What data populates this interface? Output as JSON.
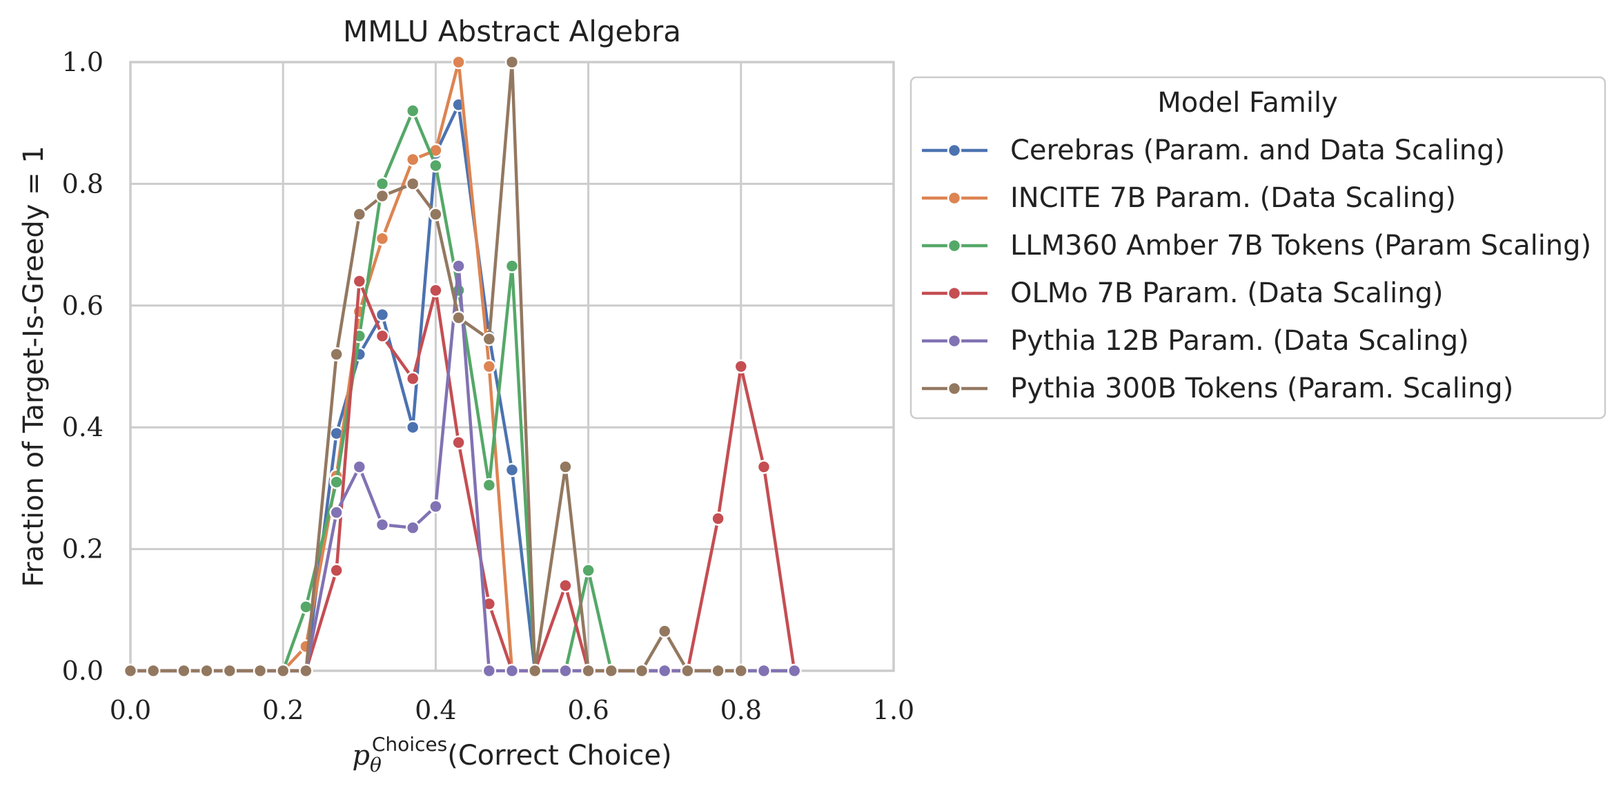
{
  "chart_data": {
    "type": "line",
    "title": "MMLU Abstract Algebra",
    "xlabel_prefix": "p",
    "xlabel_sub": "θ",
    "xlabel_sup": "Choices",
    "xlabel_main": "(Correct Choice)",
    "ylabel": "Fraction of Target-Is-Greedy = 1",
    "xlim": [
      0,
      1
    ],
    "ylim": [
      0,
      1
    ],
    "xticks": [
      "0.0",
      "0.2",
      "0.4",
      "0.6",
      "0.8",
      "1.0"
    ],
    "yticks": [
      "0.0",
      "0.2",
      "0.4",
      "0.6",
      "0.8",
      "1.0"
    ],
    "grid": true,
    "legend_title": "Model Family",
    "legend_position": "outside-right",
    "series": [
      {
        "name": "Cerebras (Param. and Data Scaling)",
        "color": "#4c72b0",
        "x": [
          0.0,
          0.03,
          0.07,
          0.1,
          0.13,
          0.17,
          0.2,
          0.23,
          0.27,
          0.3,
          0.33,
          0.37,
          0.4,
          0.43,
          0.47,
          0.5,
          0.53,
          0.57,
          0.6,
          0.63,
          0.67,
          0.7,
          0.73,
          0.77,
          0.8,
          0.83,
          0.87
        ],
        "y": [
          0.0,
          0.0,
          0.0,
          0.0,
          0.0,
          0.0,
          0.0,
          0.0,
          0.39,
          0.52,
          0.585,
          0.4,
          0.85,
          0.93,
          0.55,
          0.33,
          0.0,
          0.0,
          0.0,
          0.0,
          0.0,
          0.0,
          0.0,
          0.0,
          0.0,
          0.0,
          0.0
        ]
      },
      {
        "name": "INCITE 7B Param. (Data Scaling)",
        "color": "#dd8452",
        "x": [
          0.0,
          0.03,
          0.07,
          0.1,
          0.13,
          0.17,
          0.2,
          0.23,
          0.27,
          0.3,
          0.33,
          0.37,
          0.4,
          0.43,
          0.47,
          0.5,
          0.53,
          0.57,
          0.6,
          0.63,
          0.67,
          0.7,
          0.73,
          0.77,
          0.8,
          0.83,
          0.87
        ],
        "y": [
          0.0,
          0.0,
          0.0,
          0.0,
          0.0,
          0.0,
          0.0,
          0.04,
          0.32,
          0.59,
          0.71,
          0.84,
          0.855,
          1.0,
          0.5,
          0.0,
          0.0,
          0.0,
          0.0,
          0.0,
          0.0,
          0.0,
          0.0,
          0.0,
          0.0,
          0.0,
          0.0
        ]
      },
      {
        "name": "LLM360 Amber 7B Tokens (Param Scaling)",
        "color": "#55a868",
        "x": [
          0.0,
          0.03,
          0.07,
          0.1,
          0.13,
          0.17,
          0.2,
          0.23,
          0.27,
          0.3,
          0.33,
          0.37,
          0.4,
          0.43,
          0.47,
          0.5,
          0.53,
          0.57,
          0.6,
          0.63,
          0.67,
          0.7,
          0.73,
          0.77,
          0.8,
          0.83,
          0.87
        ],
        "y": [
          0.0,
          0.0,
          0.0,
          0.0,
          0.0,
          0.0,
          0.0,
          0.105,
          0.31,
          0.55,
          0.8,
          0.92,
          0.83,
          0.625,
          0.305,
          0.665,
          0.0,
          0.0,
          0.165,
          0.0,
          0.0,
          0.0,
          0.0,
          0.0,
          0.0,
          0.0,
          0.0
        ]
      },
      {
        "name": "OLMo 7B Param. (Data Scaling)",
        "color": "#c44e52",
        "x": [
          0.0,
          0.03,
          0.07,
          0.1,
          0.13,
          0.17,
          0.2,
          0.23,
          0.27,
          0.3,
          0.33,
          0.37,
          0.4,
          0.43,
          0.47,
          0.5,
          0.53,
          0.57,
          0.6,
          0.63,
          0.67,
          0.7,
          0.73,
          0.77,
          0.8,
          0.83,
          0.87
        ],
        "y": [
          0.0,
          0.0,
          0.0,
          0.0,
          0.0,
          0.0,
          0.0,
          0.0,
          0.165,
          0.64,
          0.55,
          0.48,
          0.625,
          0.375,
          0.11,
          0.0,
          0.0,
          0.14,
          0.0,
          0.0,
          0.0,
          0.0,
          0.0,
          0.25,
          0.5,
          0.335,
          0.0
        ]
      },
      {
        "name": "Pythia 12B Param. (Data Scaling)",
        "color": "#8172b3",
        "x": [
          0.0,
          0.03,
          0.07,
          0.1,
          0.13,
          0.17,
          0.2,
          0.23,
          0.27,
          0.3,
          0.33,
          0.37,
          0.4,
          0.43,
          0.47,
          0.5,
          0.53,
          0.57,
          0.6,
          0.63,
          0.67,
          0.7,
          0.73,
          0.77,
          0.8,
          0.83,
          0.87
        ],
        "y": [
          0.0,
          0.0,
          0.0,
          0.0,
          0.0,
          0.0,
          0.0,
          0.0,
          0.26,
          0.335,
          0.24,
          0.235,
          0.27,
          0.665,
          0.0,
          0.0,
          0.0,
          0.0,
          0.0,
          0.0,
          0.0,
          0.0,
          0.0,
          0.0,
          0.0,
          0.0,
          0.0
        ]
      },
      {
        "name": "Pythia 300B Tokens (Param. Scaling)",
        "color": "#937860",
        "x": [
          0.0,
          0.03,
          0.07,
          0.1,
          0.13,
          0.17,
          0.2,
          0.23,
          0.27,
          0.3,
          0.33,
          0.37,
          0.4,
          0.43,
          0.47,
          0.5,
          0.53,
          0.57,
          0.6,
          0.63,
          0.67,
          0.7,
          0.73,
          0.77,
          0.8
        ],
        "y": [
          0.0,
          0.0,
          0.0,
          0.0,
          0.0,
          0.0,
          0.0,
          0.0,
          0.52,
          0.75,
          0.78,
          0.8,
          0.75,
          0.58,
          0.545,
          1.0,
          0.0,
          0.335,
          0.0,
          0.0,
          0.0,
          0.065,
          0.0,
          0.0,
          0.0
        ]
      }
    ]
  }
}
